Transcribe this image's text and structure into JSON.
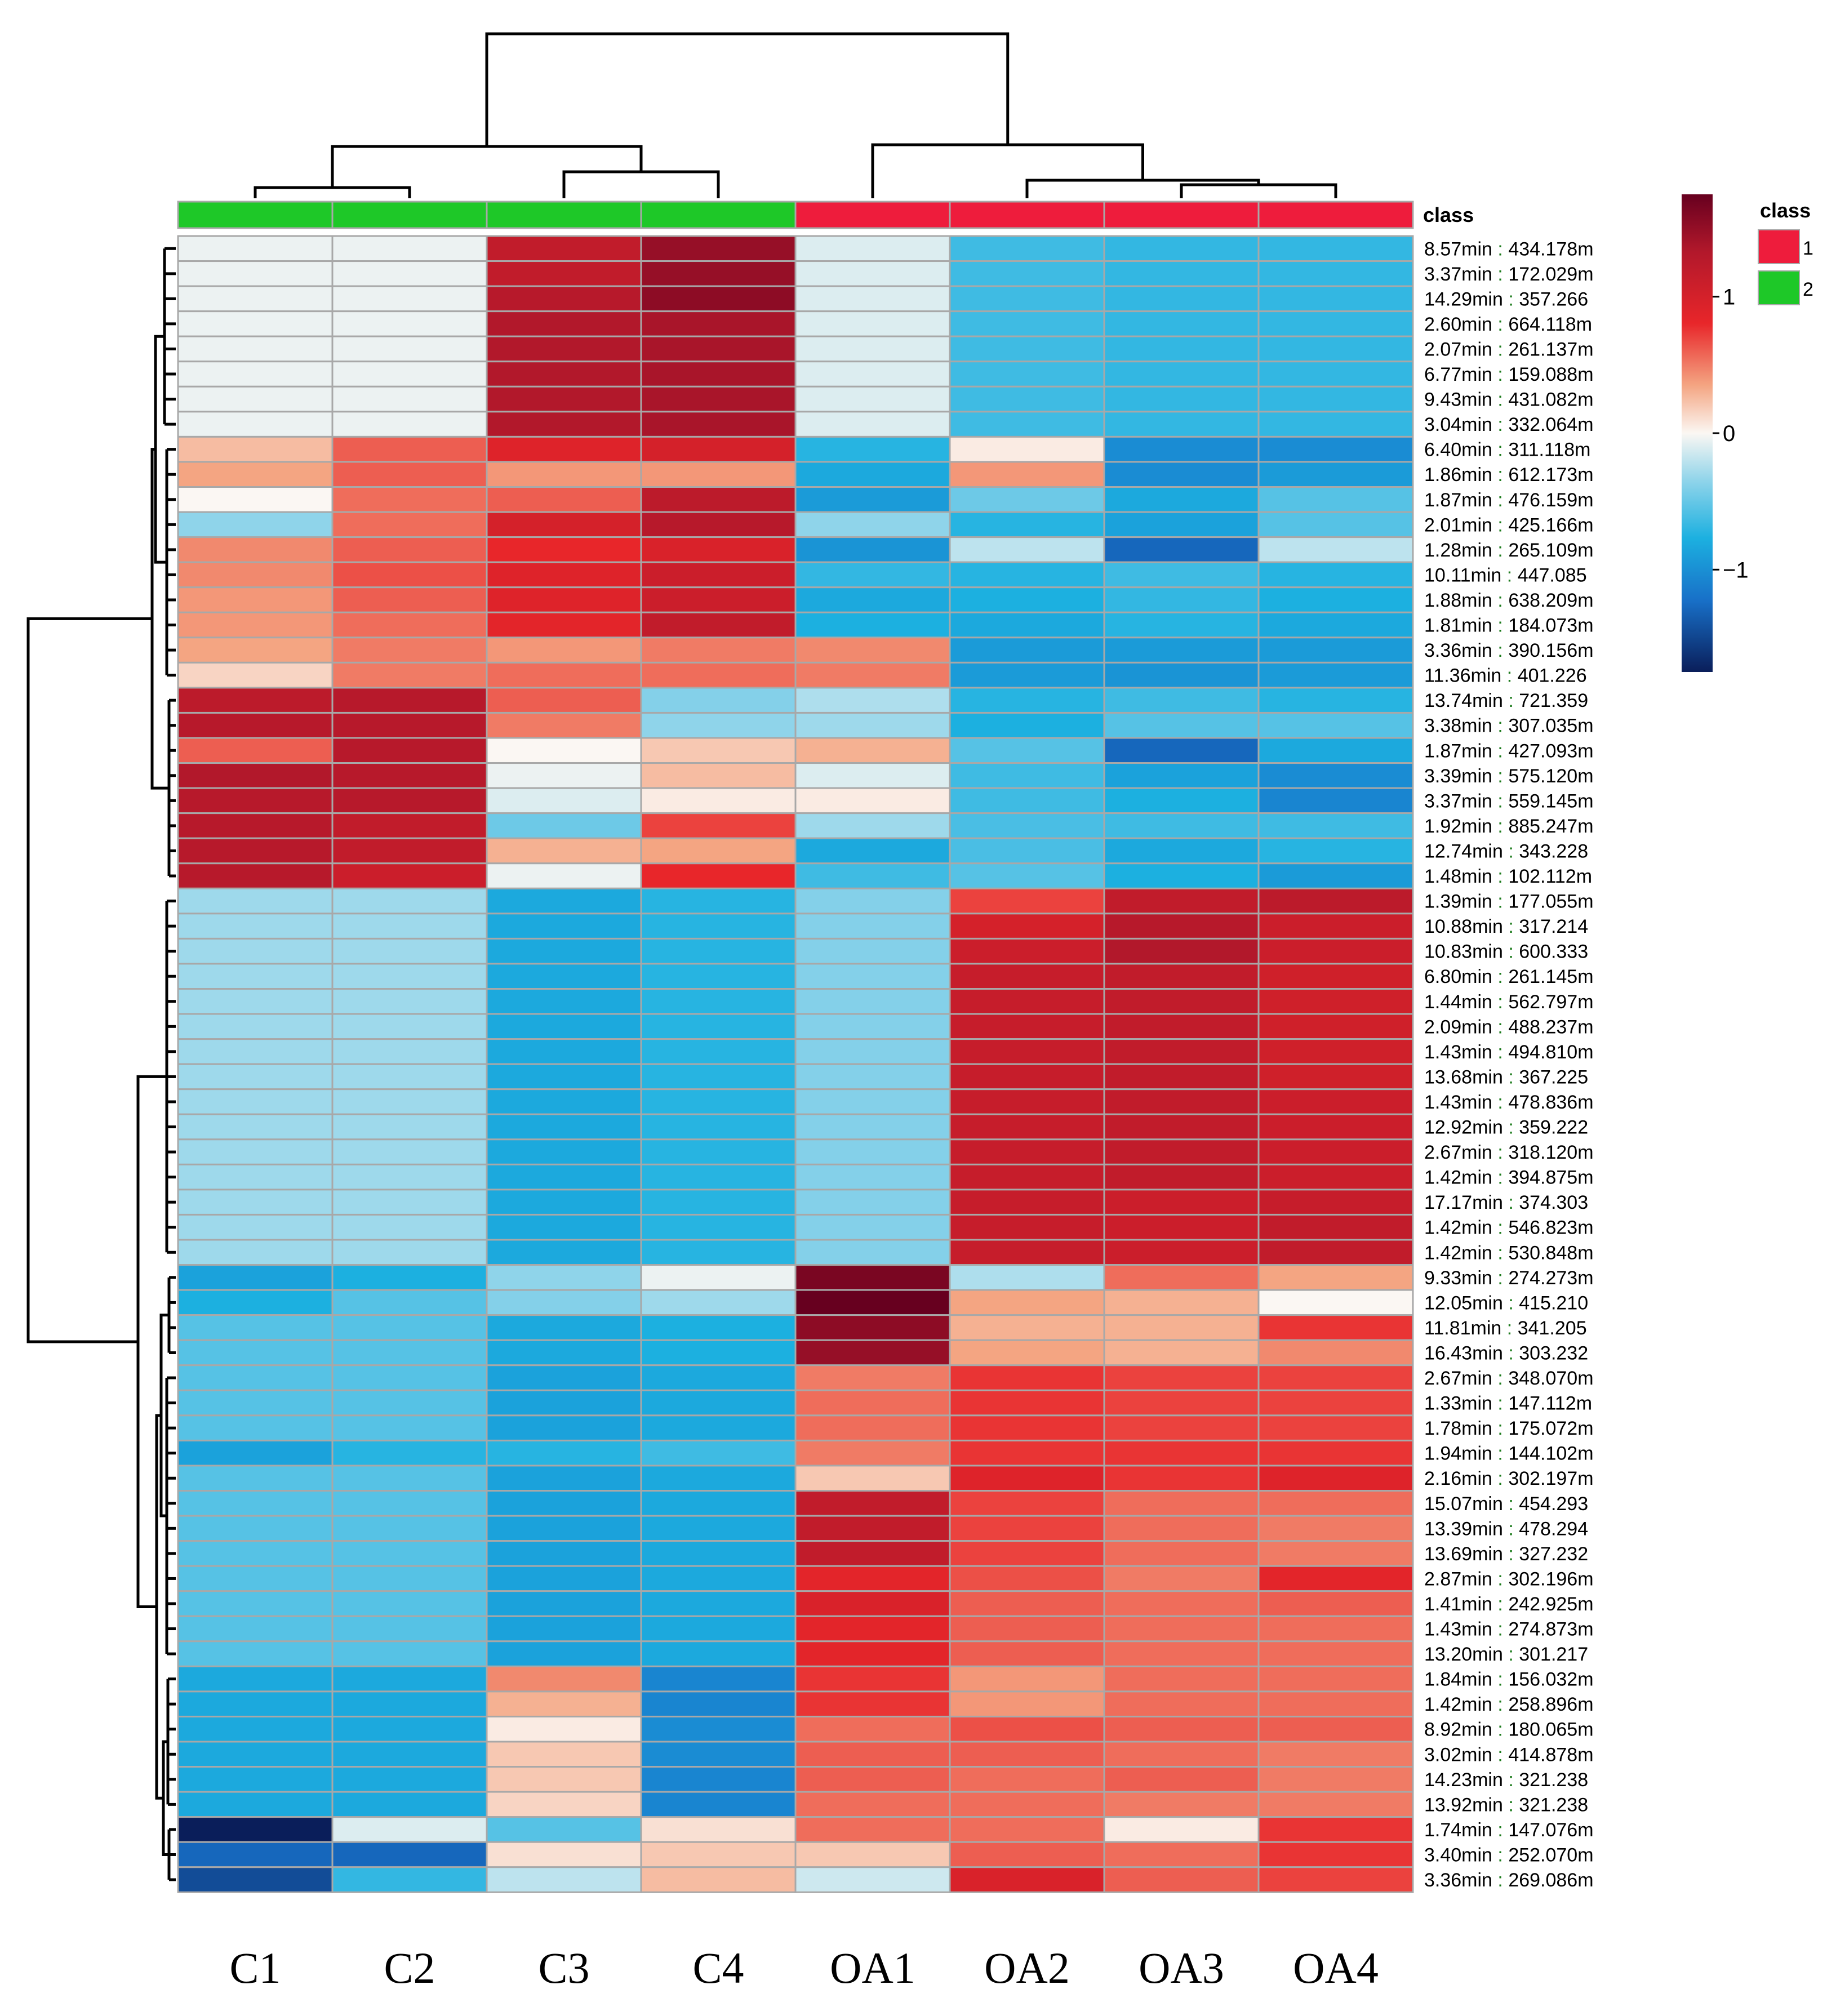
{
  "chart_data": {
    "type": "heatmap",
    "title": "",
    "columns": [
      "C1",
      "C2",
      "C3",
      "C4",
      "OA1",
      "OA2",
      "OA3",
      "OA4"
    ],
    "column_classes": [
      2,
      2,
      2,
      2,
      1,
      1,
      1,
      1
    ],
    "class_label": "class",
    "legend": {
      "title": "class",
      "entries": [
        {
          "label": "1",
          "color": "#ee1c3c"
        },
        {
          "label": "2",
          "color": "#1ec828"
        }
      ]
    },
    "colorbar": {
      "min": -1.75,
      "max": 1.75,
      "ticks": [
        {
          "value": 1,
          "label": "1"
        },
        {
          "value": 0,
          "label": "0"
        },
        {
          "value": -1,
          "label": "−1"
        }
      ]
    },
    "rows": [
      {
        "label_time": "8.57min",
        "label_mz": "434.178m",
        "values": [
          -0.05,
          -0.05,
          1.2,
          1.5,
          -0.1,
          -0.7,
          -0.75,
          -0.75
        ]
      },
      {
        "label_time": "3.37min",
        "label_mz": "172.029m",
        "values": [
          -0.05,
          -0.05,
          1.2,
          1.5,
          -0.1,
          -0.7,
          -0.75,
          -0.75
        ]
      },
      {
        "label_time": "14.29min",
        "label_mz": "357.266",
        "values": [
          -0.05,
          -0.05,
          1.3,
          1.55,
          -0.1,
          -0.7,
          -0.75,
          -0.75
        ]
      },
      {
        "label_time": "2.60min",
        "label_mz": "664.118m",
        "values": [
          -0.05,
          -0.05,
          1.35,
          1.4,
          -0.1,
          -0.7,
          -0.75,
          -0.75
        ]
      },
      {
        "label_time": "2.07min",
        "label_mz": "261.137m",
        "values": [
          -0.05,
          -0.05,
          1.35,
          1.4,
          -0.1,
          -0.7,
          -0.75,
          -0.75
        ]
      },
      {
        "label_time": "6.77min",
        "label_mz": "159.088m",
        "values": [
          -0.05,
          -0.05,
          1.35,
          1.4,
          -0.1,
          -0.7,
          -0.75,
          -0.75
        ]
      },
      {
        "label_time": "9.43min",
        "label_mz": "431.082m",
        "values": [
          -0.05,
          -0.05,
          1.35,
          1.4,
          -0.1,
          -0.7,
          -0.75,
          -0.75
        ]
      },
      {
        "label_time": "3.04min",
        "label_mz": "332.064m",
        "values": [
          -0.05,
          -0.05,
          1.35,
          1.4,
          -0.1,
          -0.7,
          -0.75,
          -0.75
        ]
      },
      {
        "label_time": "6.40min",
        "label_mz": "311.118m",
        "values": [
          0.25,
          0.6,
          0.9,
          1.0,
          -0.8,
          0.05,
          -1.1,
          -1.1
        ]
      },
      {
        "label_time": "1.86min",
        "label_mz": "612.173m",
        "values": [
          0.35,
          0.6,
          0.4,
          0.4,
          -0.9,
          0.4,
          -1.1,
          -1.0
        ]
      },
      {
        "label_time": "1.87min",
        "label_mz": "476.159m",
        "values": [
          0.0,
          0.55,
          0.6,
          1.25,
          -1.0,
          -0.5,
          -0.9,
          -0.6
        ]
      },
      {
        "label_time": "2.01min",
        "label_mz": "425.166m",
        "values": [
          -0.35,
          0.55,
          1.0,
          1.3,
          -0.35,
          -0.8,
          -0.95,
          -0.6
        ]
      },
      {
        "label_time": "1.28min",
        "label_mz": "265.109m",
        "values": [
          0.45,
          0.6,
          0.8,
          0.95,
          -1.05,
          -0.2,
          -1.35,
          -0.2
        ]
      },
      {
        "label_time": "10.11min",
        "label_mz": "447.085",
        "values": [
          0.45,
          0.65,
          0.9,
          1.1,
          -0.75,
          -0.8,
          -0.7,
          -0.8
        ]
      },
      {
        "label_time": "1.88min",
        "label_mz": "638.209m",
        "values": [
          0.4,
          0.6,
          0.9,
          1.1,
          -0.9,
          -0.85,
          -0.75,
          -0.85
        ]
      },
      {
        "label_time": "1.81min",
        "label_mz": "184.073m",
        "values": [
          0.4,
          0.55,
          0.85,
          1.2,
          -0.85,
          -0.9,
          -0.8,
          -0.9
        ]
      },
      {
        "label_time": "3.36min",
        "label_mz": "390.156m",
        "values": [
          0.35,
          0.5,
          0.4,
          0.5,
          0.45,
          -1.0,
          -1.0,
          -1.0
        ]
      },
      {
        "label_time": "11.36min",
        "label_mz": "401.226",
        "values": [
          0.15,
          0.5,
          0.55,
          0.55,
          0.5,
          -1.0,
          -1.05,
          -1.0
        ]
      },
      {
        "label_time": "13.74min",
        "label_mz": "721.359",
        "values": [
          1.25,
          1.3,
          0.6,
          -0.4,
          -0.25,
          -0.8,
          -0.7,
          -0.8
        ]
      },
      {
        "label_time": "3.38min",
        "label_mz": "307.035m",
        "values": [
          1.3,
          1.3,
          0.5,
          -0.35,
          -0.3,
          -0.85,
          -0.6,
          -0.6
        ]
      },
      {
        "label_time": "1.87min",
        "label_mz": "427.093m",
        "values": [
          0.6,
          1.3,
          0.0,
          0.2,
          0.3,
          -0.6,
          -1.35,
          -0.9
        ]
      },
      {
        "label_time": "3.39min",
        "label_mz": "575.120m",
        "values": [
          1.35,
          1.3,
          -0.05,
          0.25,
          -0.1,
          -0.7,
          -0.95,
          -1.1
        ]
      },
      {
        "label_time": "3.37min",
        "label_mz": "559.145m",
        "values": [
          1.3,
          1.3,
          -0.1,
          0.05,
          0.05,
          -0.7,
          -0.85,
          -1.15
        ]
      },
      {
        "label_time": "1.92min",
        "label_mz": "885.247m",
        "values": [
          1.3,
          1.2,
          -0.5,
          0.7,
          -0.3,
          -0.65,
          -0.7,
          -0.7
        ]
      },
      {
        "label_time": "12.74min",
        "label_mz": "343.228",
        "values": [
          1.3,
          1.2,
          0.3,
          0.35,
          -0.9,
          -0.65,
          -0.9,
          -0.8
        ]
      },
      {
        "label_time": "1.48min",
        "label_mz": "102.112m",
        "values": [
          1.3,
          1.1,
          -0.05,
          0.8,
          -0.7,
          -0.6,
          -0.85,
          -1.0
        ]
      },
      {
        "label_time": "1.39min",
        "label_mz": "177.055m",
        "values": [
          -0.3,
          -0.3,
          -0.9,
          -0.8,
          -0.4,
          0.7,
          1.2,
          1.25
        ]
      },
      {
        "label_time": "10.88min",
        "label_mz": "317.214",
        "values": [
          -0.3,
          -0.3,
          -0.9,
          -0.8,
          -0.4,
          1.0,
          1.3,
          1.1
        ]
      },
      {
        "label_time": "10.83min",
        "label_mz": "600.333",
        "values": [
          -0.3,
          -0.3,
          -0.9,
          -0.8,
          -0.4,
          1.1,
          1.35,
          1.1
        ]
      },
      {
        "label_time": "6.80min",
        "label_mz": "261.145m",
        "values": [
          -0.3,
          -0.3,
          -0.9,
          -0.8,
          -0.4,
          1.15,
          1.2,
          1.05
        ]
      },
      {
        "label_time": "1.44min",
        "label_mz": "562.797m",
        "values": [
          -0.3,
          -0.3,
          -0.9,
          -0.8,
          -0.4,
          1.15,
          1.2,
          1.05
        ]
      },
      {
        "label_time": "2.09min",
        "label_mz": "488.237m",
        "values": [
          -0.3,
          -0.3,
          -0.9,
          -0.8,
          -0.4,
          1.15,
          1.2,
          1.05
        ]
      },
      {
        "label_time": "1.43min",
        "label_mz": "494.810m",
        "values": [
          -0.3,
          -0.3,
          -0.9,
          -0.8,
          -0.4,
          1.15,
          1.2,
          1.05
        ]
      },
      {
        "label_time": "13.68min",
        "label_mz": "367.225",
        "values": [
          -0.3,
          -0.3,
          -0.9,
          -0.8,
          -0.4,
          1.15,
          1.2,
          1.05
        ]
      },
      {
        "label_time": "1.43min",
        "label_mz": "478.836m",
        "values": [
          -0.3,
          -0.3,
          -0.9,
          -0.8,
          -0.4,
          1.15,
          1.2,
          1.1
        ]
      },
      {
        "label_time": "12.92min",
        "label_mz": "359.222",
        "values": [
          -0.3,
          -0.3,
          -0.9,
          -0.8,
          -0.4,
          1.15,
          1.2,
          1.1
        ]
      },
      {
        "label_time": "2.67min",
        "label_mz": "318.120m",
        "values": [
          -0.3,
          -0.3,
          -0.9,
          -0.8,
          -0.4,
          1.15,
          1.2,
          1.1
        ]
      },
      {
        "label_time": "1.42min",
        "label_mz": "394.875m",
        "values": [
          -0.3,
          -0.3,
          -0.9,
          -0.8,
          -0.4,
          1.15,
          1.2,
          1.1
        ]
      },
      {
        "label_time": "17.17min",
        "label_mz": "374.303",
        "values": [
          -0.3,
          -0.3,
          -0.9,
          -0.8,
          -0.4,
          1.15,
          1.1,
          1.15
        ]
      },
      {
        "label_time": "1.42min",
        "label_mz": "546.823m",
        "values": [
          -0.3,
          -0.3,
          -0.9,
          -0.8,
          -0.4,
          1.15,
          1.1,
          1.2
        ]
      },
      {
        "label_time": "1.42min",
        "label_mz": "530.848m",
        "values": [
          -0.3,
          -0.3,
          -0.9,
          -0.8,
          -0.4,
          1.15,
          1.1,
          1.2
        ]
      },
      {
        "label_time": "9.33min",
        "label_mz": "274.273m",
        "values": [
          -0.95,
          -0.85,
          -0.35,
          -0.05,
          1.65,
          -0.25,
          0.55,
          0.35
        ]
      },
      {
        "label_time": "12.05min",
        "label_mz": "415.210",
        "values": [
          -0.85,
          -0.6,
          -0.4,
          -0.3,
          1.75,
          0.35,
          0.3,
          0.0
        ]
      },
      {
        "label_time": "11.81min",
        "label_mz": "341.205",
        "values": [
          -0.6,
          -0.6,
          -0.9,
          -0.85,
          1.55,
          0.3,
          0.3,
          0.75
        ]
      },
      {
        "label_time": "16.43min",
        "label_mz": "303.232",
        "values": [
          -0.6,
          -0.6,
          -0.9,
          -0.85,
          1.5,
          0.35,
          0.3,
          0.45
        ]
      },
      {
        "label_time": "2.67min",
        "label_mz": "348.070m",
        "values": [
          -0.6,
          -0.6,
          -0.95,
          -0.9,
          0.5,
          0.75,
          0.7,
          0.7
        ]
      },
      {
        "label_time": "1.33min",
        "label_mz": "147.112m",
        "values": [
          -0.6,
          -0.6,
          -0.95,
          -0.9,
          0.55,
          0.75,
          0.7,
          0.7
        ]
      },
      {
        "label_time": "1.78min",
        "label_mz": "175.072m",
        "values": [
          -0.6,
          -0.6,
          -0.95,
          -0.9,
          0.55,
          0.75,
          0.7,
          0.7
        ]
      },
      {
        "label_time": "1.94min",
        "label_mz": "144.102m",
        "values": [
          -0.95,
          -0.8,
          -0.8,
          -0.7,
          0.5,
          0.75,
          0.75,
          0.75
        ]
      },
      {
        "label_time": "2.16min",
        "label_mz": "302.197m",
        "values": [
          -0.6,
          -0.6,
          -0.95,
          -0.9,
          0.2,
          0.9,
          0.75,
          0.9
        ]
      },
      {
        "label_time": "15.07min",
        "label_mz": "454.293",
        "values": [
          -0.6,
          -0.6,
          -0.95,
          -0.9,
          1.2,
          0.7,
          0.55,
          0.55
        ]
      },
      {
        "label_time": "13.39min",
        "label_mz": "478.294",
        "values": [
          -0.6,
          -0.6,
          -0.95,
          -0.9,
          1.2,
          0.7,
          0.55,
          0.5
        ]
      },
      {
        "label_time": "13.69min",
        "label_mz": "327.232",
        "values": [
          -0.6,
          -0.6,
          -0.95,
          -0.9,
          1.2,
          0.7,
          0.55,
          0.5
        ]
      },
      {
        "label_time": "2.87min",
        "label_mz": "302.196m",
        "values": [
          -0.6,
          -0.6,
          -0.95,
          -0.9,
          0.85,
          0.65,
          0.5,
          0.85
        ]
      },
      {
        "label_time": "1.41min",
        "label_mz": "242.925m",
        "values": [
          -0.6,
          -0.6,
          -0.95,
          -0.9,
          0.95,
          0.6,
          0.55,
          0.6
        ]
      },
      {
        "label_time": "1.43min",
        "label_mz": "274.873m",
        "values": [
          -0.6,
          -0.6,
          -0.95,
          -0.9,
          0.85,
          0.6,
          0.55,
          0.55
        ]
      },
      {
        "label_time": "13.20min",
        "label_mz": "301.217",
        "values": [
          -0.6,
          -0.6,
          -0.95,
          -0.9,
          0.85,
          0.6,
          0.55,
          0.55
        ]
      },
      {
        "label_time": "1.84min",
        "label_mz": "156.032m",
        "values": [
          -0.9,
          -0.9,
          0.45,
          -1.15,
          0.75,
          0.4,
          0.55,
          0.55
        ]
      },
      {
        "label_time": "1.42min",
        "label_mz": "258.896m",
        "values": [
          -0.9,
          -0.9,
          0.3,
          -1.15,
          0.75,
          0.4,
          0.55,
          0.55
        ]
      },
      {
        "label_time": "8.92min",
        "label_mz": "180.065m",
        "values": [
          -0.9,
          -0.9,
          0.05,
          -1.1,
          0.55,
          0.65,
          0.6,
          0.6
        ]
      },
      {
        "label_time": "3.02min",
        "label_mz": "414.878m",
        "values": [
          -0.9,
          -0.9,
          0.2,
          -1.1,
          0.6,
          0.6,
          0.55,
          0.5
        ]
      },
      {
        "label_time": "14.23min",
        "label_mz": "321.238",
        "values": [
          -0.9,
          -0.9,
          0.2,
          -1.15,
          0.6,
          0.55,
          0.6,
          0.5
        ]
      },
      {
        "label_time": "13.92min",
        "label_mz": "321.238",
        "values": [
          -0.9,
          -0.9,
          0.15,
          -1.15,
          0.55,
          0.55,
          0.5,
          0.5
        ]
      },
      {
        "label_time": "1.74min",
        "label_mz": "147.076m",
        "values": [
          -1.75,
          -0.1,
          -0.6,
          0.1,
          0.55,
          0.55,
          0.05,
          0.75
        ]
      },
      {
        "label_time": "3.40min",
        "label_mz": "252.070m",
        "values": [
          -1.35,
          -1.35,
          0.1,
          0.2,
          0.2,
          0.6,
          0.55,
          0.75
        ]
      },
      {
        "label_time": "3.36min",
        "label_mz": "269.086m",
        "values": [
          -1.5,
          -0.75,
          -0.2,
          0.25,
          -0.15,
          0.95,
          0.6,
          0.7
        ]
      }
    ]
  }
}
